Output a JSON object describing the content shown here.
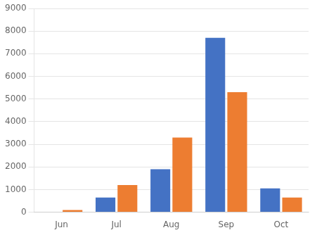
{
  "chart_data": {
    "type": "bar",
    "categories": [
      "Jun",
      "Jul",
      "Aug",
      "Sep",
      "Oct"
    ],
    "series": [
      {
        "color": "#4472c4",
        "values": [
          0,
          650,
          1900,
          7700,
          1050
        ]
      },
      {
        "color": "#ed7d31",
        "values": [
          100,
          1200,
          3300,
          5300,
          650
        ]
      }
    ],
    "ylim": [
      0,
      9000
    ],
    "yticks": [
      0,
      1000,
      2000,
      3000,
      4000,
      5000,
      6000,
      7000,
      8000,
      9000
    ],
    "grid": true
  }
}
